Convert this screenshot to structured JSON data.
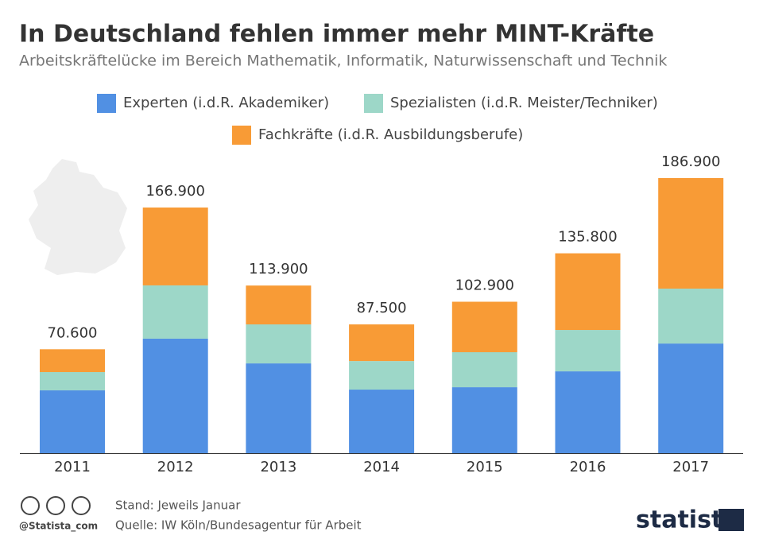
{
  "chart_data": {
    "type": "stacked-bar",
    "title": "In Deutschland fehlen immer mehr MINT-Kräfte",
    "subtitle": "Arbeitskräftelücke im Bereich Mathematik, Informatik, Naturwissenschaft und Technik",
    "categories": [
      "2011",
      "2012",
      "2013",
      "2014",
      "2015",
      "2016",
      "2017"
    ],
    "series": [
      {
        "name": "Experten (i.d.R. Akademiker)",
        "color": "#5190e3",
        "values": [
          42700,
          77800,
          61000,
          43200,
          44800,
          55600,
          74500
        ]
      },
      {
        "name": "Spezialisten (i.d.R. Meister/Techniker)",
        "color": "#9dd7c8",
        "values": [
          12400,
          36200,
          26500,
          19400,
          23800,
          28100,
          37300
        ]
      },
      {
        "name": "Fachkräfte (i.d.R. Ausbildungsberufe)",
        "color": "#f89b36",
        "values": [
          15500,
          52900,
          26400,
          24900,
          34300,
          52100,
          75100
        ]
      }
    ],
    "totals": {
      "values": [
        70600,
        166900,
        113900,
        87500,
        102900,
        135800,
        186900
      ],
      "value_labels": [
        "70.600",
        "166.900",
        "113.900",
        "87.500",
        "102.900",
        "135.800",
        "186.900"
      ]
    },
    "note": "Stand: Jeweils Januar",
    "source": "Quelle: IW Köln/Bundesagentur für Arbeit",
    "credit": "@Statista_com",
    "logo": "statista"
  }
}
